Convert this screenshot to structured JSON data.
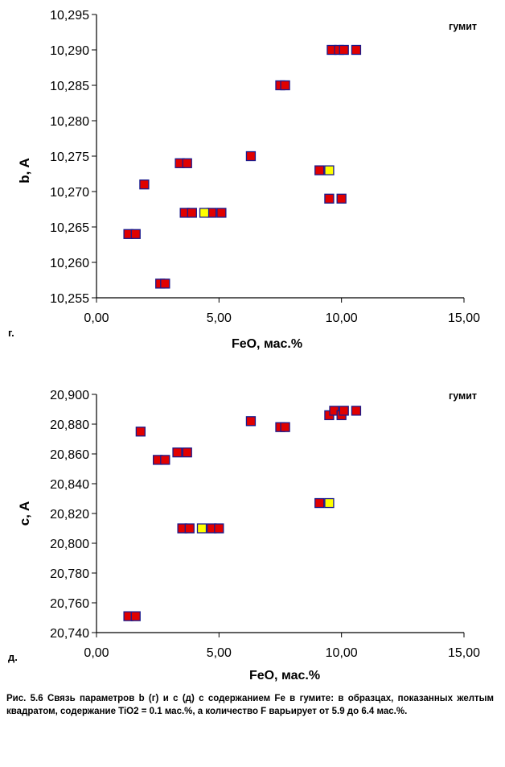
{
  "chart_data": [
    {
      "type": "scatter",
      "panel_label": "г.",
      "annotation": "гумит",
      "xlabel": "FeO, мас.%",
      "ylabel": "b, A",
      "xlim": [
        0,
        15
      ],
      "ylim": [
        10.255,
        10.295
      ],
      "x_ticks": [
        0,
        5,
        10,
        15
      ],
      "x_tick_labels": [
        "0,00",
        "5,00",
        "10,00",
        "15,00"
      ],
      "y_ticks": [
        10.255,
        10.26,
        10.265,
        10.27,
        10.275,
        10.28,
        10.285,
        10.29,
        10.295
      ],
      "y_tick_labels": [
        "10,255",
        "10,260",
        "10,265",
        "10,270",
        "10,275",
        "10,280",
        "10,285",
        "10,290",
        "10,295"
      ],
      "grid": false,
      "series": [
        {
          "marker_color": "#e00000",
          "points": [
            {
              "x": 1.3,
              "y": 10.264
            },
            {
              "x": 1.6,
              "y": 10.264
            },
            {
              "x": 1.95,
              "y": 10.271
            },
            {
              "x": 2.6,
              "y": 10.257
            },
            {
              "x": 2.8,
              "y": 10.257
            },
            {
              "x": 3.4,
              "y": 10.274
            },
            {
              "x": 3.7,
              "y": 10.274
            },
            {
              "x": 3.6,
              "y": 10.267
            },
            {
              "x": 3.9,
              "y": 10.267
            },
            {
              "x": 4.7,
              "y": 10.267
            },
            {
              "x": 5.1,
              "y": 10.267
            },
            {
              "x": 6.3,
              "y": 10.275
            },
            {
              "x": 7.5,
              "y": 10.285
            },
            {
              "x": 7.7,
              "y": 10.285
            },
            {
              "x": 9.1,
              "y": 10.273
            },
            {
              "x": 9.5,
              "y": 10.269
            },
            {
              "x": 10.0,
              "y": 10.269
            },
            {
              "x": 9.6,
              "y": 10.29
            },
            {
              "x": 9.9,
              "y": 10.29
            },
            {
              "x": 10.1,
              "y": 10.29
            },
            {
              "x": 10.6,
              "y": 10.29
            }
          ]
        },
        {
          "marker_color": "#ffff00",
          "points": [
            {
              "x": 4.4,
              "y": 10.267
            },
            {
              "x": 9.5,
              "y": 10.273
            }
          ]
        }
      ]
    },
    {
      "type": "scatter",
      "panel_label": "д.",
      "annotation": "гумит",
      "xlabel": "FeO, мас.%",
      "ylabel": "c, A",
      "xlim": [
        0,
        15
      ],
      "ylim": [
        20.74,
        20.9
      ],
      "x_ticks": [
        0,
        5,
        10,
        15
      ],
      "x_tick_labels": [
        "0,00",
        "5,00",
        "10,00",
        "15,00"
      ],
      "y_ticks": [
        20.74,
        20.76,
        20.78,
        20.8,
        20.82,
        20.84,
        20.86,
        20.88,
        20.9
      ],
      "y_tick_labels": [
        "20,740",
        "20,760",
        "20,780",
        "20,800",
        "20,820",
        "20,840",
        "20,860",
        "20,880",
        "20,900"
      ],
      "grid": false,
      "series": [
        {
          "marker_color": "#e00000",
          "points": [
            {
              "x": 1.3,
              "y": 20.751
            },
            {
              "x": 1.6,
              "y": 20.751
            },
            {
              "x": 1.8,
              "y": 20.875
            },
            {
              "x": 2.5,
              "y": 20.856
            },
            {
              "x": 2.8,
              "y": 20.856
            },
            {
              "x": 3.3,
              "y": 20.861
            },
            {
              "x": 3.7,
              "y": 20.861
            },
            {
              "x": 3.5,
              "y": 20.81
            },
            {
              "x": 3.8,
              "y": 20.81
            },
            {
              "x": 4.7,
              "y": 20.81
            },
            {
              "x": 5.0,
              "y": 20.81
            },
            {
              "x": 6.3,
              "y": 20.882
            },
            {
              "x": 7.5,
              "y": 20.878
            },
            {
              "x": 7.7,
              "y": 20.878
            },
            {
              "x": 9.1,
              "y": 20.827
            },
            {
              "x": 9.5,
              "y": 20.886
            },
            {
              "x": 9.7,
              "y": 20.889
            },
            {
              "x": 10.0,
              "y": 20.886
            },
            {
              "x": 10.1,
              "y": 20.889
            },
            {
              "x": 10.6,
              "y": 20.889
            }
          ]
        },
        {
          "marker_color": "#ffff00",
          "points": [
            {
              "x": 4.3,
              "y": 20.81
            },
            {
              "x": 9.5,
              "y": 20.827
            }
          ]
        }
      ]
    }
  ],
  "caption": {
    "text": "Рис. 5.6 Связь параметров b (г) и с (д) с содержанием Fe в гумите: в образцах, показанных желтым квадратом, содержание TiO2 = 0.1 мас.%, а количество F варьирует от 5.9 до 6.4 мас.%."
  },
  "marker_border_color": "#1a1a8c"
}
